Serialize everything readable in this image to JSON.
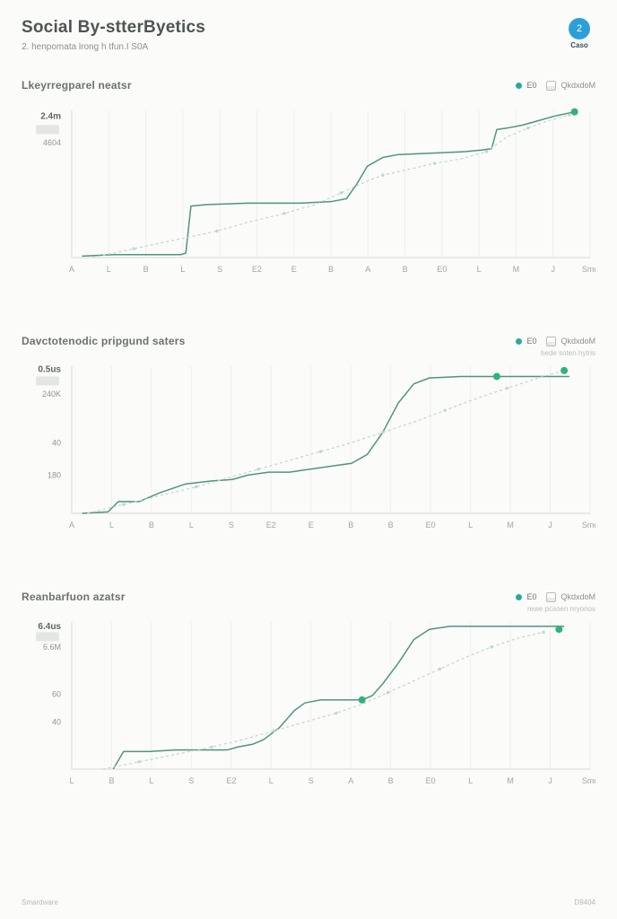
{
  "page": {
    "title": "Social By-stterByetics",
    "subtitle": "2. henpomata lrong h tfun.I S0A",
    "footer_left": "Smardware",
    "footer_right": "D9404"
  },
  "logo": {
    "badge": "2",
    "label": "Caso"
  },
  "colors": {
    "accent_green": "#2eb378",
    "line_solid": "#4f9483",
    "line_dashed": "#bcd8cf",
    "legend_dot": "#2aa9a0",
    "logo_blue": "#2d9fd8",
    "grid": "#eef0ee",
    "axis": "#d8dbd8",
    "swatch": "#e4e6e4"
  },
  "chart_data": [
    {
      "type": "line",
      "title": "Lkeyrregparel neatsr",
      "legend": {
        "primary": "E0",
        "secondary": "QkdxdoM",
        "note": ""
      },
      "ylim": [
        0,
        100
      ],
      "x_range": [
        0,
        100
      ],
      "grid": true,
      "legend_position": "top-right",
      "y_labels": [
        {
          "label": "2.4m",
          "pos": 0.04,
          "strong": true
        },
        {
          "label": "4604",
          "pos": 0.22,
          "strong": false
        }
      ],
      "swatch_pos": 0.13,
      "x_ticks": [
        "A",
        "L",
        "B",
        "L",
        "S",
        "E2",
        "E",
        "B",
        "A",
        "B",
        "E0",
        "L",
        "M",
        "J",
        "Smo"
      ],
      "series": [
        {
          "name": "solid",
          "style": "solid",
          "points": [
            [
              2,
              1
            ],
            [
              8,
              2
            ],
            [
              21,
              2
            ],
            [
              22,
              3
            ],
            [
              23,
              35
            ],
            [
              26,
              36
            ],
            [
              34,
              37
            ],
            [
              44,
              37
            ],
            [
              50,
              38
            ],
            [
              53,
              40
            ],
            [
              55,
              50
            ],
            [
              57,
              62
            ],
            [
              60,
              68
            ],
            [
              63,
              70
            ],
            [
              70,
              71
            ],
            [
              76,
              72
            ],
            [
              79,
              73
            ],
            [
              81,
              74
            ],
            [
              82,
              87
            ],
            [
              84,
              88
            ],
            [
              87,
              90
            ],
            [
              90,
              93
            ],
            [
              93,
              96
            ],
            [
              97,
              99
            ]
          ]
        },
        {
          "name": "dashed",
          "style": "dashed",
          "points": [
            [
              4,
              0
            ],
            [
              12,
              6
            ],
            [
              20,
              12
            ],
            [
              28,
              18
            ],
            [
              34,
              24
            ],
            [
              41,
              30
            ],
            [
              47,
              36
            ],
            [
              52,
              44
            ],
            [
              57,
              52
            ],
            [
              60,
              56
            ],
            [
              65,
              60
            ],
            [
              70,
              64
            ],
            [
              75,
              67
            ],
            [
              80,
              72
            ],
            [
              84,
              82
            ],
            [
              88,
              88
            ],
            [
              92,
              93
            ],
            [
              96,
              97
            ]
          ]
        }
      ],
      "markers": [
        [
          97,
          99
        ]
      ]
    },
    {
      "type": "line",
      "title": "Davctotenodic pripgund saters",
      "legend": {
        "primary": "E0",
        "secondary": "QkdxdoM",
        "note": "hede soten hytris"
      },
      "ylim": [
        0,
        100
      ],
      "x_range": [
        0,
        100
      ],
      "grid": true,
      "legend_position": "top-right",
      "y_labels": [
        {
          "label": "0.5us",
          "pos": 0.02,
          "strong": true
        },
        {
          "label": "240K",
          "pos": 0.19,
          "strong": false
        },
        {
          "label": "40",
          "pos": 0.52,
          "strong": false
        },
        {
          "label": "180",
          "pos": 0.74,
          "strong": false
        }
      ],
      "swatch_pos": 0.1,
      "x_ticks": [
        "A",
        "L",
        "B",
        "L",
        "S",
        "E2",
        "E",
        "B",
        "B",
        "E0",
        "L",
        "M",
        "J",
        "Smo"
      ],
      "series": [
        {
          "name": "solid",
          "style": "solid",
          "points": [
            [
              2,
              0
            ],
            [
              7,
              1
            ],
            [
              9,
              8
            ],
            [
              13,
              8
            ],
            [
              17,
              14
            ],
            [
              22,
              20
            ],
            [
              27,
              22
            ],
            [
              31,
              23
            ],
            [
              34,
              26
            ],
            [
              38,
              28
            ],
            [
              42,
              28
            ],
            [
              46,
              30
            ],
            [
              50,
              32
            ],
            [
              54,
              34
            ],
            [
              57,
              40
            ],
            [
              60,
              55
            ],
            [
              63,
              75
            ],
            [
              66,
              88
            ],
            [
              69,
              92
            ],
            [
              75,
              93
            ],
            [
              82,
              93
            ],
            [
              90,
              93
            ],
            [
              96,
              93
            ]
          ]
        },
        {
          "name": "dashed",
          "style": "dashed",
          "points": [
            [
              3,
              0
            ],
            [
              10,
              6
            ],
            [
              17,
              12
            ],
            [
              24,
              18
            ],
            [
              30,
              24
            ],
            [
              36,
              30
            ],
            [
              42,
              36
            ],
            [
              48,
              42
            ],
            [
              54,
              48
            ],
            [
              60,
              55
            ],
            [
              66,
              62
            ],
            [
              72,
              70
            ],
            [
              78,
              78
            ],
            [
              84,
              85
            ],
            [
              90,
              92
            ],
            [
              95,
              97
            ]
          ]
        }
      ],
      "markers": [
        [
          82,
          93
        ],
        [
          95,
          97
        ]
      ]
    },
    {
      "type": "line",
      "title": "Reanbarfuon azatsr",
      "legend": {
        "primary": "E0",
        "secondary": "QkdxdoM",
        "note": "rewe pcsoen nryonos"
      },
      "ylim": [
        0,
        100
      ],
      "x_range": [
        0,
        100
      ],
      "grid": true,
      "legend_position": "top-right",
      "y_labels": [
        {
          "label": "6.4us",
          "pos": 0.03,
          "strong": true
        },
        {
          "label": "6.6M",
          "pos": 0.17,
          "strong": false
        },
        {
          "label": "60",
          "pos": 0.49,
          "strong": false
        },
        {
          "label": "40",
          "pos": 0.68,
          "strong": false
        }
      ],
      "swatch_pos": 0.1,
      "x_ticks": [
        "L",
        "B",
        "L",
        "S",
        "E2",
        "L",
        "S",
        "A",
        "B",
        "E0",
        "L",
        "M",
        "J",
        "Smo"
      ],
      "series": [
        {
          "name": "solid",
          "style": "solid",
          "points": [
            [
              8,
              0
            ],
            [
              10,
              12
            ],
            [
              15,
              12
            ],
            [
              20,
              13
            ],
            [
              25,
              13
            ],
            [
              30,
              13
            ],
            [
              32,
              15
            ],
            [
              35,
              17
            ],
            [
              37,
              20
            ],
            [
              40,
              28
            ],
            [
              43,
              40
            ],
            [
              45,
              45
            ],
            [
              48,
              47
            ],
            [
              52,
              47
            ],
            [
              56,
              47
            ],
            [
              58,
              50
            ],
            [
              60,
              58
            ],
            [
              63,
              72
            ],
            [
              66,
              88
            ],
            [
              69,
              95
            ],
            [
              73,
              97
            ],
            [
              80,
              97
            ],
            [
              88,
              97
            ],
            [
              95,
              97
            ]
          ]
        },
        {
          "name": "dashed",
          "style": "dashed",
          "points": [
            [
              6,
              0
            ],
            [
              13,
              5
            ],
            [
              20,
              10
            ],
            [
              27,
              15
            ],
            [
              33,
              20
            ],
            [
              39,
              26
            ],
            [
              45,
              32
            ],
            [
              51,
              38
            ],
            [
              56,
              44
            ],
            [
              61,
              52
            ],
            [
              66,
              60
            ],
            [
              71,
              68
            ],
            [
              76,
              76
            ],
            [
              81,
              83
            ],
            [
              86,
              89
            ],
            [
              91,
              93
            ]
          ]
        }
      ],
      "markers": [
        [
          56,
          47
        ],
        [
          94,
          95
        ]
      ]
    }
  ]
}
